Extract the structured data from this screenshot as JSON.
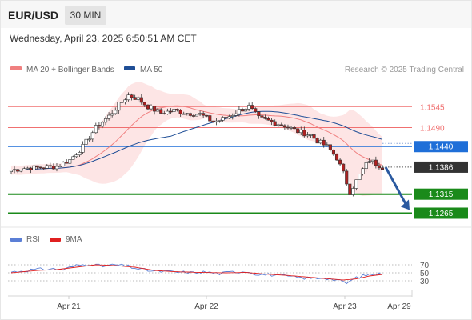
{
  "header": {
    "pair": "EUR/USD",
    "timeframe": "30 MIN",
    "timestamp": "Wednesday, April 23, 2025 6:50:51 AM CET"
  },
  "legend": {
    "ma20_label": "MA 20 + Bollinger Bands",
    "ma50_label": "MA 50",
    "ma20_color": "#f08080",
    "ma50_color": "#1f4e96",
    "copyright": "Research © 2025 Trading Central"
  },
  "rsi_legend": {
    "rsi_label": "RSI",
    "ma9_label": "9MA",
    "rsi_color": "#5b7fd6",
    "ma9_color": "#e02020"
  },
  "colors": {
    "resistance": "#f07070",
    "pivot": "#1f6fd8",
    "support": "#1a8a1a",
    "current": "#333333",
    "bull_candle": "#ffffff",
    "bear_candle": "#b02020",
    "bollinger_fill": "#fde2e2",
    "arrow": "#2b5aa0"
  },
  "chart_data": {
    "type": "candlestick",
    "x_ticks": [
      "Apr 21",
      "Apr 22",
      "Apr 23",
      "Apr 29"
    ],
    "y_range": [
      1.1245,
      1.1615
    ],
    "levels": [
      {
        "value": 1.1545,
        "label": "1.1545",
        "kind": "resistance"
      },
      {
        "value": 1.149,
        "label": "1.1490",
        "kind": "resistance"
      },
      {
        "value": 1.144,
        "label": "1.1440",
        "kind": "pivot"
      },
      {
        "value": 1.1386,
        "label": "1.1386",
        "kind": "current"
      },
      {
        "value": 1.1315,
        "label": "1.1315",
        "kind": "support"
      },
      {
        "value": 1.1265,
        "label": "1.1265",
        "kind": "support"
      }
    ],
    "price_keypoints": [
      [
        0,
        1.1378
      ],
      [
        4,
        1.1383
      ],
      [
        10,
        1.1386
      ],
      [
        14,
        1.1388
      ],
      [
        18,
        1.1405
      ],
      [
        22,
        1.144
      ],
      [
        26,
        1.149
      ],
      [
        30,
        1.152
      ],
      [
        33,
        1.155
      ],
      [
        36,
        1.1575
      ],
      [
        39,
        1.1565
      ],
      [
        42,
        1.1545
      ],
      [
        46,
        1.1528
      ],
      [
        50,
        1.1535
      ],
      [
        54,
        1.1528
      ],
      [
        58,
        1.1525
      ],
      [
        62,
        1.1505
      ],
      [
        66,
        1.1515
      ],
      [
        70,
        1.1535
      ],
      [
        73,
        1.1545
      ],
      [
        76,
        1.1515
      ],
      [
        80,
        1.1505
      ],
      [
        84,
        1.1495
      ],
      [
        88,
        1.148
      ],
      [
        92,
        1.147
      ],
      [
        94,
        1.1455
      ],
      [
        97,
        1.144
      ],
      [
        100,
        1.141
      ],
      [
        102,
        1.137
      ],
      [
        104,
        1.132
      ],
      [
        106,
        1.135
      ],
      [
        108,
        1.138
      ],
      [
        110,
        1.1405
      ],
      [
        112,
        1.1395
      ],
      [
        114,
        1.1386
      ]
    ],
    "rsi": {
      "levels": [
        70,
        50,
        30
      ],
      "range": [
        0,
        100
      ],
      "keypoints": [
        [
          0,
          52
        ],
        [
          6,
          57
        ],
        [
          12,
          60
        ],
        [
          16,
          58
        ],
        [
          20,
          68
        ],
        [
          24,
          72
        ],
        [
          28,
          66
        ],
        [
          32,
          70
        ],
        [
          36,
          66
        ],
        [
          40,
          58
        ],
        [
          44,
          54
        ],
        [
          50,
          52
        ],
        [
          56,
          50
        ],
        [
          60,
          52
        ],
        [
          64,
          48
        ],
        [
          68,
          52
        ],
        [
          72,
          54
        ],
        [
          76,
          46
        ],
        [
          80,
          45
        ],
        [
          84,
          42
        ],
        [
          88,
          38
        ],
        [
          92,
          36
        ],
        [
          96,
          38
        ],
        [
          100,
          32
        ],
        [
          103,
          24
        ],
        [
          106,
          38
        ],
        [
          110,
          46
        ],
        [
          114,
          47
        ]
      ],
      "ma9_keypoints": [
        [
          0,
          50
        ],
        [
          8,
          56
        ],
        [
          14,
          58
        ],
        [
          20,
          64
        ],
        [
          26,
          70
        ],
        [
          32,
          68
        ],
        [
          38,
          64
        ],
        [
          44,
          56
        ],
        [
          50,
          53
        ],
        [
          58,
          51
        ],
        [
          66,
          50
        ],
        [
          72,
          51
        ],
        [
          78,
          47
        ],
        [
          84,
          44
        ],
        [
          90,
          40
        ],
        [
          96,
          36
        ],
        [
          102,
          32
        ],
        [
          106,
          35
        ],
        [
          110,
          42
        ],
        [
          114,
          46
        ]
      ]
    },
    "forecast": {
      "from": 1.1386,
      "to": 1.1265
    }
  }
}
